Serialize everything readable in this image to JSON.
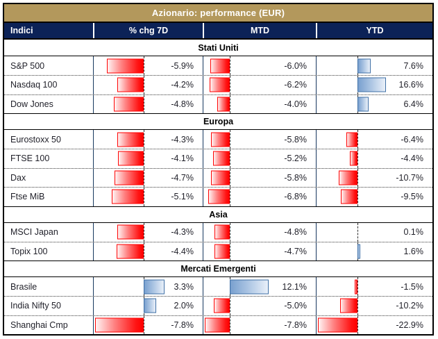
{
  "colors": {
    "header_gold": "#b3985c",
    "header_navy": "#0c2257",
    "column_border_slate": "#17375e",
    "negative_bar_red": "#ff0000",
    "positive_bar_blue": "#4f81bd",
    "text": "#1f1f28"
  },
  "header": {
    "title": "Azionario: performance (EUR)"
  },
  "columns": [
    {
      "label": "Indici"
    },
    {
      "label": "% chg 7D"
    },
    {
      "label": "MTD"
    },
    {
      "label": "YTD"
    }
  ],
  "chart_data": {
    "type": "table",
    "title": "Azionario: performance (EUR)",
    "columns": [
      "Indici",
      "% chg 7D",
      "MTD",
      "YTD"
    ],
    "value_format": "percent_one_decimal",
    "bar_axes": {
      "chg7d": {
        "min": -7.8,
        "max": 3.3
      },
      "mtd": {
        "min": -7.8,
        "max": 12.1
      },
      "ytd": {
        "min": -22.9,
        "max": 16.6
      }
    },
    "sections": [
      {
        "label": "Stati Uniti",
        "rows": [
          {
            "name": "S&P 500",
            "chg7d": -5.9,
            "mtd": -6.0,
            "ytd": 7.6
          },
          {
            "name": "Nasdaq 100",
            "chg7d": -4.2,
            "mtd": -6.2,
            "ytd": 16.6
          },
          {
            "name": "Dow Jones",
            "chg7d": -4.8,
            "mtd": -4.0,
            "ytd": 6.4
          }
        ]
      },
      {
        "label": "Europa",
        "rows": [
          {
            "name": "Eurostoxx 50",
            "chg7d": -4.3,
            "mtd": -5.8,
            "ytd": -6.4
          },
          {
            "name": "FTSE 100",
            "chg7d": -4.1,
            "mtd": -5.2,
            "ytd": -4.4
          },
          {
            "name": "Dax",
            "chg7d": -4.7,
            "mtd": -5.8,
            "ytd": -10.7
          },
          {
            "name": "Ftse MiB",
            "chg7d": -5.1,
            "mtd": -6.8,
            "ytd": -9.5
          }
        ]
      },
      {
        "label": "Asia",
        "rows": [
          {
            "name": "MSCI Japan",
            "chg7d": -4.3,
            "mtd": -4.8,
            "ytd": 0.1
          },
          {
            "name": "Topix 100",
            "chg7d": -4.4,
            "mtd": -4.7,
            "ytd": 1.6
          }
        ]
      },
      {
        "label": "Mercati Emergenti",
        "rows": [
          {
            "name": "Brasile",
            "chg7d": 3.3,
            "mtd": 12.1,
            "ytd": -1.5
          },
          {
            "name": "India Nifty 50",
            "chg7d": 2.0,
            "mtd": -5.0,
            "ytd": -10.2
          },
          {
            "name": "Shanghai Cmp",
            "chg7d": -7.8,
            "mtd": -7.8,
            "ytd": -22.9
          }
        ]
      }
    ]
  }
}
